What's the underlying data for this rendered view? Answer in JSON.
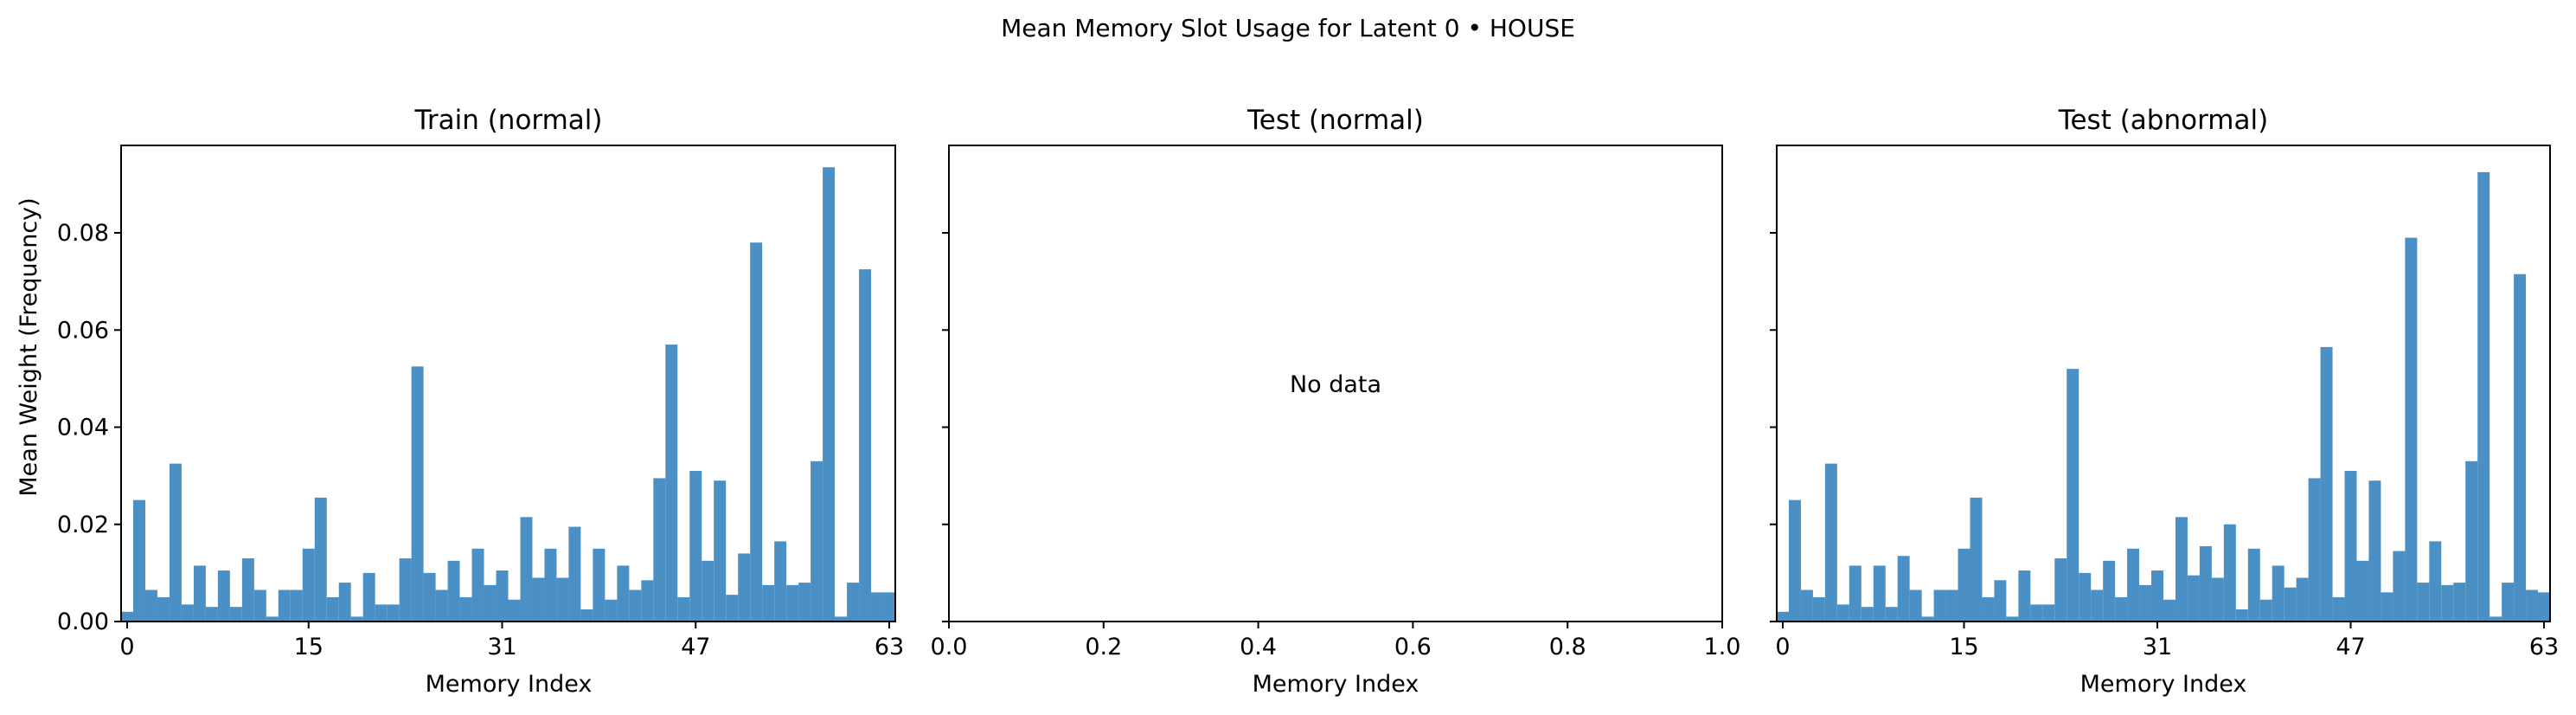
{
  "suptitle": "Mean Memory Slot Usage for Latent 0 • HOUSE",
  "colors": {
    "bar": "#4a90c4",
    "axis": "#000000",
    "background": "#ffffff"
  },
  "chart_data": [
    {
      "type": "bar",
      "title": "Train (normal)",
      "xlabel": "Memory Index",
      "ylabel": "Mean Weight (Frequency)",
      "xticks": [
        0,
        15,
        31,
        47,
        63
      ],
      "yticks": [
        "0.00",
        "0.02",
        "0.04",
        "0.06",
        "0.08"
      ],
      "ylim": [
        0,
        0.098
      ],
      "xlim": [
        -0.5,
        63.5
      ],
      "grid": false,
      "values": [
        0.002,
        0.025,
        0.0065,
        0.005,
        0.0325,
        0.0035,
        0.0115,
        0.003,
        0.0105,
        0.003,
        0.013,
        0.0065,
        0.001,
        0.0065,
        0.0065,
        0.015,
        0.0255,
        0.005,
        0.008,
        0.001,
        0.01,
        0.0035,
        0.0035,
        0.013,
        0.0525,
        0.01,
        0.0065,
        0.0125,
        0.005,
        0.015,
        0.0075,
        0.0105,
        0.0045,
        0.0215,
        0.009,
        0.015,
        0.009,
        0.0195,
        0.0025,
        0.015,
        0.0045,
        0.0115,
        0.0065,
        0.0085,
        0.0295,
        0.057,
        0.005,
        0.031,
        0.0125,
        0.029,
        0.0055,
        0.014,
        0.078,
        0.0075,
        0.0165,
        0.0075,
        0.008,
        0.033,
        0.0935,
        0.001,
        0.008,
        0.0725,
        0.006,
        0.006
      ]
    },
    {
      "type": "bar",
      "title": "Test (normal)",
      "xlabel": "Memory Index",
      "ylabel": "",
      "xticks": [
        "0.0",
        "0.2",
        "0.4",
        "0.6",
        "0.8",
        "1.0"
      ],
      "xlim": [
        0,
        1
      ],
      "ylim": [
        0,
        0.098
      ],
      "grid": false,
      "values": [],
      "annotation": "No data"
    },
    {
      "type": "bar",
      "title": "Test (abnormal)",
      "xlabel": "Memory Index",
      "ylabel": "",
      "xticks": [
        0,
        15,
        31,
        47,
        63
      ],
      "ylim": [
        0,
        0.098
      ],
      "xlim": [
        -0.5,
        63.5
      ],
      "grid": false,
      "values": [
        0.002,
        0.025,
        0.0065,
        0.005,
        0.0325,
        0.0035,
        0.0115,
        0.003,
        0.0115,
        0.003,
        0.0135,
        0.0065,
        0.001,
        0.0065,
        0.0065,
        0.015,
        0.0255,
        0.005,
        0.0085,
        0.001,
        0.0105,
        0.0035,
        0.0035,
        0.013,
        0.052,
        0.01,
        0.0065,
        0.0125,
        0.005,
        0.015,
        0.0075,
        0.0105,
        0.0045,
        0.0215,
        0.0095,
        0.0155,
        0.009,
        0.02,
        0.0025,
        0.015,
        0.0045,
        0.0115,
        0.007,
        0.009,
        0.0295,
        0.0565,
        0.005,
        0.031,
        0.0125,
        0.029,
        0.006,
        0.0145,
        0.079,
        0.008,
        0.0165,
        0.0075,
        0.008,
        0.033,
        0.0925,
        0.001,
        0.008,
        0.0715,
        0.0065,
        0.006
      ]
    }
  ]
}
